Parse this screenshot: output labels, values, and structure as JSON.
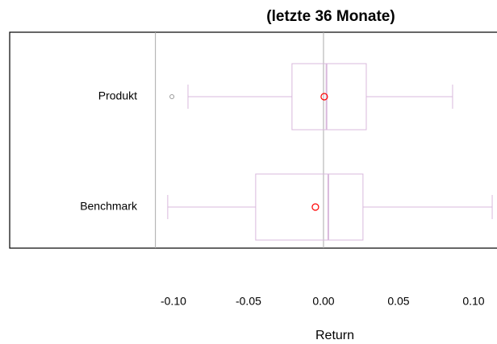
{
  "chart_data": {
    "type": "boxplot",
    "orientation": "horizontal",
    "title": "(letzte 36 Monate)",
    "x_label": "Return",
    "categories": [
      "Produkt",
      "Benchmark"
    ],
    "min": [
      -0.0903,
      -0.1038
    ],
    "q1": [
      -0.021,
      -0.0452
    ],
    "median": [
      0.002,
      0.0032
    ],
    "q3": [
      0.0285,
      0.0263
    ],
    "max": [
      0.086,
      0.1124
    ],
    "mean": [
      0.0005,
      -0.0054
    ],
    "outliers": [
      [
        -0.101
      ],
      []
    ],
    "box_color": "#d9b8dc",
    "mean_color": "#ff0000",
    "outlier_color": "#999999",
    "reference_lines": [
      -0.112,
      0
    ],
    "reference_color": "#aaaaaa",
    "xlim": [
      -0.2091,
      0.1156
    ],
    "xticks": [
      {
        "value": -0.1,
        "label": "-0.10"
      },
      -0.05,
      {
        "value": 0,
        "label": "0.00"
      },
      0.05,
      {
        "value": 0.1,
        "label": "0.10"
      }
    ]
  }
}
